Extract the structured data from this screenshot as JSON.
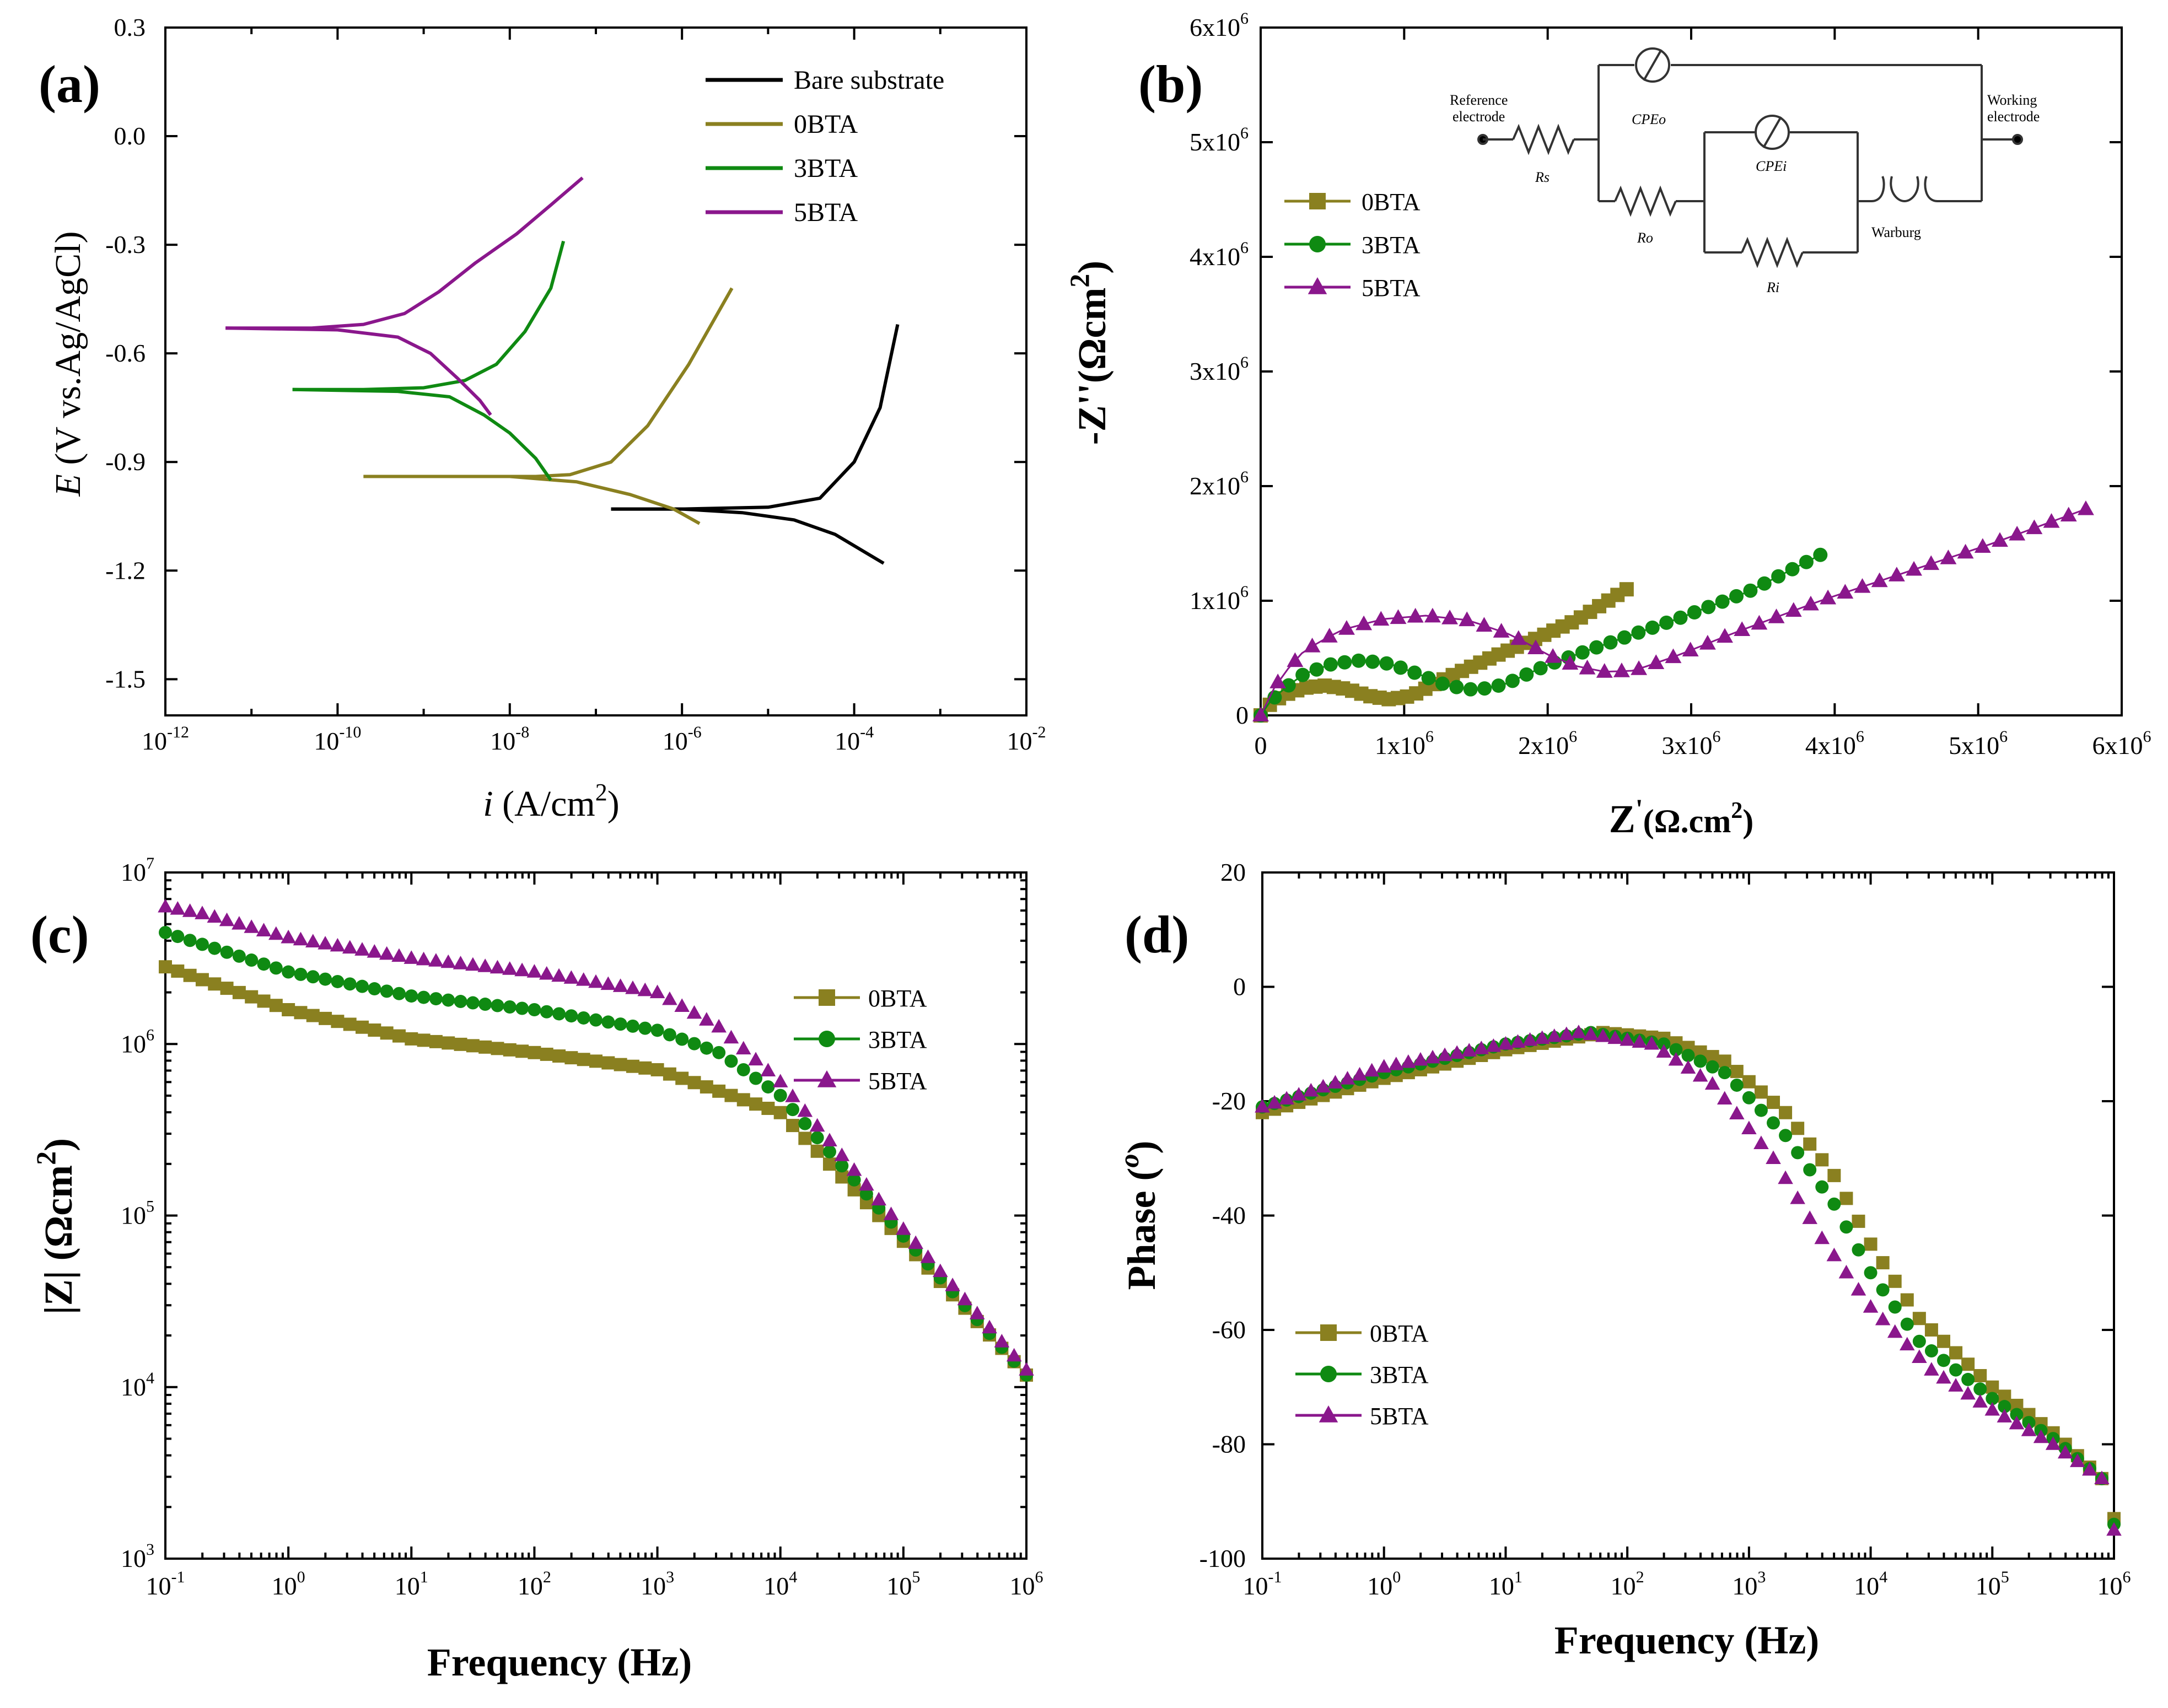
{
  "colors": {
    "bare": "#000000",
    "olive": "#8a8020",
    "green": "#0f8a12",
    "purple": "#8a178c"
  },
  "panels": {
    "a": {
      "label": "(a)"
    },
    "b": {
      "label": "(b)"
    },
    "c": {
      "label": "(c)"
    },
    "d": {
      "label": "(d)"
    }
  },
  "circuit": {
    "reference": "Reference",
    "electrode_ref": "electrode",
    "working": "Working",
    "electrode_work": "electrode",
    "rs": "Rs",
    "cpe_o": "CPEo",
    "ro": "Ro",
    "cpe_i": "CPEi",
    "ri": "Ri",
    "warburg": "Warburg"
  },
  "chart_data": [
    {
      "panel": "a",
      "type": "line",
      "title": "",
      "xlabel": "i (A/cm2)",
      "ylabel": "E (V vs.Ag/AgCl)",
      "xscale": "log",
      "xlim": [
        1e-12,
        0.01
      ],
      "ylim": [
        -1.6,
        0.3
      ],
      "x_ticks": [
        {
          "base": "10",
          "exp": "-12"
        },
        {
          "base": "10",
          "exp": "-10"
        },
        {
          "base": "10",
          "exp": "-8"
        },
        {
          "base": "10",
          "exp": "-6"
        },
        {
          "base": "10",
          "exp": "-4"
        },
        {
          "base": "10",
          "exp": "-2"
        }
      ],
      "y_ticks": [
        "0.3",
        "0.0",
        "-0.3",
        "-0.6",
        "-0.9",
        "-1.2",
        "-1.5"
      ],
      "legend_position": "top-right",
      "series": [
        {
          "name": "Bare substrate",
          "color_key": "bare",
          "ecorr": -1.03,
          "anodic": [
            [
              1.5e-07,
              -1.03
            ],
            [
              1e-06,
              -1.03
            ],
            [
              1e-05,
              -1.025
            ],
            [
              4e-05,
              -1.0
            ],
            [
              0.0001,
              -0.9
            ],
            [
              0.0002,
              -0.75
            ],
            [
              0.00032,
              -0.52
            ]
          ],
          "cathodic": [
            [
              1.5e-07,
              -1.03
            ],
            [
              1e-06,
              -1.03
            ],
            [
              5e-06,
              -1.04
            ],
            [
              2e-05,
              -1.06
            ],
            [
              6e-05,
              -1.1
            ],
            [
              0.00022,
              -1.18
            ]
          ]
        },
        {
          "name": "0BTA",
          "color_key": "olive",
          "ecorr": -0.94,
          "anodic": [
            [
              2e-10,
              -0.94
            ],
            [
              2e-08,
              -0.94
            ],
            [
              5e-08,
              -0.935
            ],
            [
              1.5e-07,
              -0.9
            ],
            [
              4e-07,
              -0.8
            ],
            [
              1.2e-06,
              -0.63
            ],
            [
              3.8e-06,
              -0.42
            ]
          ],
          "cathodic": [
            [
              2e-10,
              -0.94
            ],
            [
              1e-08,
              -0.94
            ],
            [
              6e-08,
              -0.955
            ],
            [
              2.5e-07,
              -0.99
            ],
            [
              8e-07,
              -1.03
            ],
            [
              1.6e-06,
              -1.07
            ]
          ]
        },
        {
          "name": "3BTA",
          "color_key": "green",
          "ecorr": -0.7,
          "anodic": [
            [
              3e-11,
              -0.7
            ],
            [
              2e-10,
              -0.7
            ],
            [
              1e-09,
              -0.695
            ],
            [
              3e-09,
              -0.675
            ],
            [
              7e-09,
              -0.63
            ],
            [
              1.5e-08,
              -0.54
            ],
            [
              3e-08,
              -0.42
            ],
            [
              4.2e-08,
              -0.29
            ]
          ],
          "cathodic": [
            [
              3e-11,
              -0.7
            ],
            [
              5e-10,
              -0.705
            ],
            [
              2e-09,
              -0.72
            ],
            [
              5e-09,
              -0.77
            ],
            [
              1e-08,
              -0.82
            ],
            [
              2e-08,
              -0.89
            ],
            [
              3e-08,
              -0.95
            ]
          ]
        },
        {
          "name": "5BTA",
          "color_key": "purple",
          "ecorr": -0.53,
          "anodic": [
            [
              5e-12,
              -0.53
            ],
            [
              5e-11,
              -0.53
            ],
            [
              2e-10,
              -0.52
            ],
            [
              6e-10,
              -0.49
            ],
            [
              1.5e-09,
              -0.43
            ],
            [
              4e-09,
              -0.35
            ],
            [
              1.2e-08,
              -0.27
            ],
            [
              3e-08,
              -0.19
            ],
            [
              7e-08,
              -0.115
            ]
          ],
          "cathodic": [
            [
              5e-12,
              -0.53
            ],
            [
              1e-10,
              -0.535
            ],
            [
              5e-10,
              -0.555
            ],
            [
              1.2e-09,
              -0.6
            ],
            [
              2.5e-09,
              -0.67
            ],
            [
              4.5e-09,
              -0.73
            ],
            [
              6e-09,
              -0.77
            ]
          ]
        }
      ]
    },
    {
      "panel": "b",
      "type": "scatter",
      "title": "",
      "xlabel": "Z'(Ω.cm2)",
      "ylabel": "-Z''(Ωcm2)",
      "xlim": [
        0,
        6000000
      ],
      "ylim": [
        0,
        6000000
      ],
      "x_ticks": [
        "0",
        "1x10^6",
        "2x10^6",
        "3x10^6",
        "4x10^6",
        "5x10^6",
        "6x10^6"
      ],
      "y_ticks": [
        "0",
        "1x10^6",
        "2x10^6",
        "3x10^6",
        "4x10^6",
        "5x10^6",
        "6x10^6"
      ],
      "legend_position": "top-left",
      "series": [
        {
          "name": "0BTA",
          "color_key": "olive",
          "marker": "square",
          "nodes": [
            [
              0,
              0
            ],
            [
              50000,
              80000
            ],
            [
              150000,
              170000
            ],
            [
              300000,
              240000
            ],
            [
              450000,
              260000
            ],
            [
              600000,
              230000
            ],
            [
              750000,
              170000
            ],
            [
              900000,
              140000
            ],
            [
              1050000,
              170000
            ],
            [
              1300000,
              330000
            ],
            [
              1600000,
              500000
            ],
            [
              1900000,
              660000
            ],
            [
              2200000,
              830000
            ],
            [
              2550000,
              1100000
            ]
          ]
        },
        {
          "name": "3BTA",
          "color_key": "green",
          "marker": "circle",
          "nodes": [
            [
              0,
              0
            ],
            [
              50000,
              100000
            ],
            [
              150000,
              220000
            ],
            [
              300000,
              360000
            ],
            [
              500000,
              450000
            ],
            [
              700000,
              480000
            ],
            [
              900000,
              450000
            ],
            [
              1100000,
              360000
            ],
            [
              1300000,
              260000
            ],
            [
              1500000,
              220000
            ],
            [
              1700000,
              270000
            ],
            [
              2000000,
              440000
            ],
            [
              2400000,
              620000
            ],
            [
              2900000,
              840000
            ],
            [
              3400000,
              1080000
            ],
            [
              3900000,
              1400000
            ]
          ]
        },
        {
          "name": "5BTA",
          "color_key": "purple",
          "marker": "triangle",
          "nodes": [
            [
              0,
              0
            ],
            [
              50000,
              150000
            ],
            [
              150000,
              350000
            ],
            [
              300000,
              560000
            ],
            [
              550000,
              740000
            ],
            [
              850000,
              840000
            ],
            [
              1150000,
              870000
            ],
            [
              1450000,
              830000
            ],
            [
              1750000,
              700000
            ],
            [
              2000000,
              530000
            ],
            [
              2200000,
              430000
            ],
            [
              2400000,
              380000
            ],
            [
              2600000,
              390000
            ],
            [
              2900000,
              520000
            ],
            [
              3300000,
              720000
            ],
            [
              3900000,
              1000000
            ],
            [
              4500000,
              1250000
            ],
            [
              5100000,
              1500000
            ],
            [
              5750000,
              1800000
            ]
          ]
        }
      ]
    },
    {
      "panel": "c",
      "type": "scatter",
      "title": "",
      "xlabel": "Frequency (Hz)",
      "ylabel": "|Z| (Ωcm2)",
      "xscale": "log",
      "yscale": "log",
      "xlim": [
        0.1,
        1000000
      ],
      "ylim": [
        1000,
        10000000
      ],
      "x_ticks": [
        {
          "base": "10",
          "exp": "-1"
        },
        {
          "base": "10",
          "exp": "0"
        },
        {
          "base": "10",
          "exp": "1"
        },
        {
          "base": "10",
          "exp": "2"
        },
        {
          "base": "10",
          "exp": "3"
        },
        {
          "base": "10",
          "exp": "4"
        },
        {
          "base": "10",
          "exp": "5"
        },
        {
          "base": "10",
          "exp": "6"
        }
      ],
      "y_ticks": [
        {
          "base": "10",
          "exp": "3"
        },
        {
          "base": "10",
          "exp": "4"
        },
        {
          "base": "10",
          "exp": "5"
        },
        {
          "base": "10",
          "exp": "6"
        },
        {
          "base": "10",
          "exp": "7"
        }
      ],
      "legend_position": "right",
      "series": [
        {
          "name": "0BTA",
          "color_key": "olive",
          "marker": "square",
          "nodes": [
            [
              -1,
              6.45
            ],
            [
              0,
              6.2
            ],
            [
              1,
              6.03
            ],
            [
              2,
              5.95
            ],
            [
              3,
              5.85
            ],
            [
              4,
              5.6
            ],
            [
              5,
              4.85
            ],
            [
              6,
              4.07
            ]
          ]
        },
        {
          "name": "3BTA",
          "color_key": "green",
          "marker": "circle",
          "nodes": [
            [
              -1,
              6.65
            ],
            [
              0,
              6.42
            ],
            [
              1,
              6.28
            ],
            [
              2,
              6.2
            ],
            [
              3,
              6.08
            ],
            [
              3.5,
              5.95
            ],
            [
              4,
              5.7
            ],
            [
              5,
              4.88
            ],
            [
              6,
              4.07
            ]
          ]
        },
        {
          "name": "5BTA",
          "color_key": "purple",
          "marker": "triangle",
          "nodes": [
            [
              -1,
              6.8
            ],
            [
              -0.7,
              6.76
            ],
            [
              0,
              6.62
            ],
            [
              1,
              6.5
            ],
            [
              2,
              6.42
            ],
            [
              3,
              6.3
            ],
            [
              3.5,
              6.1
            ],
            [
              4,
              5.78
            ],
            [
              5,
              4.92
            ],
            [
              6,
              4.1
            ]
          ]
        }
      ]
    },
    {
      "panel": "d",
      "type": "scatter",
      "title": "",
      "xlabel": "Frequency (Hz)",
      "ylabel": "Phase (o)",
      "xscale": "log",
      "xlim": [
        0.1,
        1000000
      ],
      "ylim": [
        -100,
        20
      ],
      "x_ticks": [
        {
          "base": "10",
          "exp": "-1"
        },
        {
          "base": "10",
          "exp": "0"
        },
        {
          "base": "10",
          "exp": "1"
        },
        {
          "base": "10",
          "exp": "2"
        },
        {
          "base": "10",
          "exp": "3"
        },
        {
          "base": "10",
          "exp": "4"
        },
        {
          "base": "10",
          "exp": "5"
        },
        {
          "base": "10",
          "exp": "6"
        }
      ],
      "y_ticks": [
        "20",
        "0",
        "-20",
        "-40",
        "-60",
        "-80",
        "-100"
      ],
      "legend_position": "bottom-left",
      "series": [
        {
          "name": "0BTA",
          "color_key": "olive",
          "marker": "square",
          "nodes": [
            [
              -1,
              -22
            ],
            [
              0,
              -16
            ],
            [
              1,
              -11
            ],
            [
              1.8,
              -8
            ],
            [
              2.3,
              -9
            ],
            [
              2.8,
              -13
            ],
            [
              3.3,
              -22
            ],
            [
              3.7,
              -33
            ],
            [
              4,
              -45
            ],
            [
              4.4,
              -58
            ],
            [
              5,
              -70
            ],
            [
              5.5,
              -78
            ],
            [
              5.9,
              -86
            ],
            [
              6,
              -93
            ]
          ]
        },
        {
          "name": "3BTA",
          "color_key": "green",
          "marker": "circle",
          "nodes": [
            [
              -1,
              -21
            ],
            [
              0,
              -15
            ],
            [
              1,
              -10
            ],
            [
              1.7,
              -8
            ],
            [
              2.3,
              -10
            ],
            [
              2.8,
              -15
            ],
            [
              3.3,
              -26
            ],
            [
              3.7,
              -38
            ],
            [
              4,
              -50
            ],
            [
              4.4,
              -62
            ],
            [
              5,
              -72
            ],
            [
              5.5,
              -79
            ],
            [
              5.9,
              -86
            ],
            [
              6,
              -94
            ]
          ]
        },
        {
          "name": "5BTA",
          "color_key": "purple",
          "marker": "triangle",
          "nodes": [
            [
              -1,
              -21
            ],
            [
              0,
              -14
            ],
            [
              1,
              -10
            ],
            [
              1.6,
              -8
            ],
            [
              2.2,
              -10
            ],
            [
              2.7,
              -17
            ],
            [
              3.2,
              -30
            ],
            [
              3.6,
              -44
            ],
            [
              4,
              -56
            ],
            [
              4.5,
              -67
            ],
            [
              5,
              -74
            ],
            [
              5.5,
              -80
            ],
            [
              5.9,
              -86
            ],
            [
              6,
              -95
            ]
          ]
        }
      ]
    }
  ]
}
